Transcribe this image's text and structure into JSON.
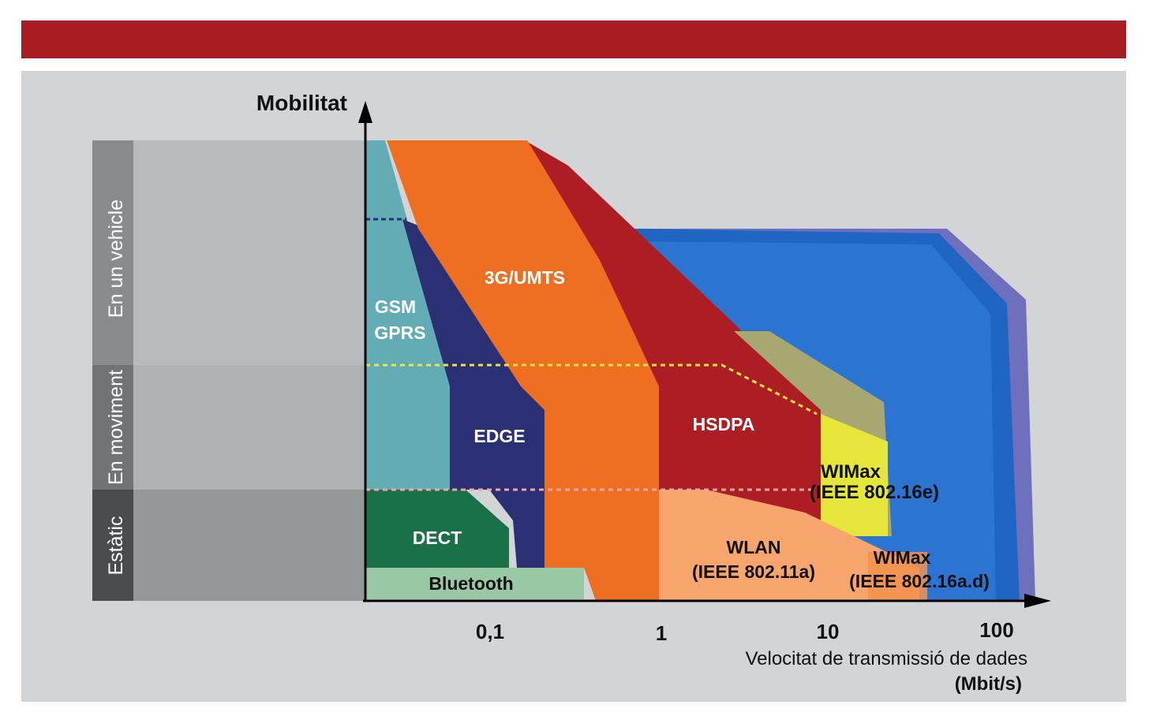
{
  "colors": {
    "header_bar": "#a91c22",
    "panel_bg": "#d3d4d6",
    "gsm": "#62adb5",
    "edge": "#2b2f74",
    "umts": "#ef6f22",
    "hsdpa": "#ad1e24",
    "wimax_outer": "#7070bd",
    "wimax_mid": "#1c6fcc",
    "wimax_e": "#e5e63a",
    "wimax_e_bg": "#a6a771",
    "wlan": "#f8a46d",
    "dect": "#1a7047",
    "bluetooth": "#98c8a5"
  },
  "diagram": {
    "y_axis_title": "Mobilitat",
    "x_axis_title": "Velocitat de transmissió de dades",
    "x_axis_unit": "(Mbit/s)",
    "x_ticks": [
      "0,1",
      "1",
      "10",
      "100"
    ],
    "mobility_levels": [
      "En un vehicle",
      "En moviment",
      "Estàtic"
    ],
    "technologies": {
      "gsm_line1": "GSM",
      "gsm_line2": "GPRS",
      "umts": "3G/UMTS",
      "edge": "EDGE",
      "hsdpa": "HSDPA",
      "wimax_e_line1": "WIMax",
      "wimax_e_line2": "(IEEE 802.16e)",
      "dect": "DECT",
      "wlan_line1": "WLAN",
      "wlan_line2": "(IEEE 802.11a)",
      "wimax_ad_line1": "WIMax",
      "wimax_ad_line2": "(IEEE 802.16a.d)",
      "bluetooth": "Bluetooth"
    }
  }
}
